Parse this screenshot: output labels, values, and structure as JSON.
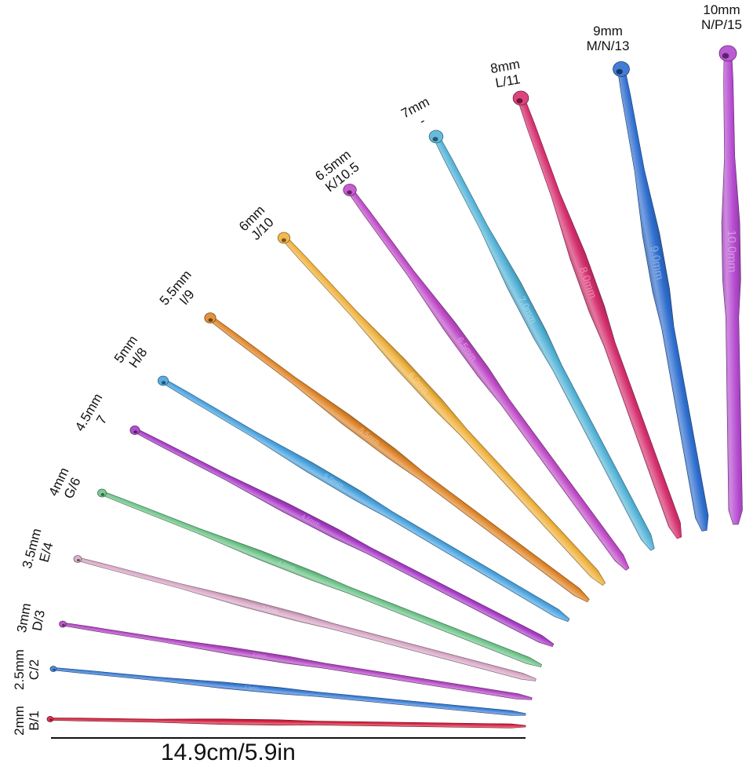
{
  "hooks": [
    {
      "size": "2mm",
      "us": "B/1",
      "color": "#d7203f",
      "engraving": ""
    },
    {
      "size": "2.5mm",
      "us": "C/2",
      "color": "#3d7fd8",
      "engraving": "2.5mm"
    },
    {
      "size": "3mm",
      "us": "D/3",
      "color": "#b448c4",
      "engraving": "3.0mm"
    },
    {
      "size": "3.5mm",
      "us": "E/4",
      "color": "#d9a8c6",
      "engraving": "3.5mm"
    },
    {
      "size": "4mm",
      "us": "G/6",
      "color": "#6fc58a",
      "engraving": "4.0mm"
    },
    {
      "size": "4.5mm",
      "us": "7",
      "color": "#a83cc6",
      "engraving": "4.5mm"
    },
    {
      "size": "5mm",
      "us": "H/8",
      "color": "#4aa3e0",
      "engraving": "5.0mm"
    },
    {
      "size": "5.5mm",
      "us": "I/9",
      "color": "#e0862a",
      "engraving": "5.5mm"
    },
    {
      "size": "6mm",
      "us": "J/10",
      "color": "#f0b23e",
      "engraving": "6.0mm"
    },
    {
      "size": "6.5mm",
      "us": "K/10.5",
      "color": "#c04cc8",
      "engraving": "6.5mm"
    },
    {
      "size": "7mm",
      "us": "-",
      "color": "#55b4d8",
      "engraving": "7.0mm"
    },
    {
      "size": "8mm",
      "us": "L/11",
      "color": "#d6306f",
      "engraving": "8.0mm"
    },
    {
      "size": "9mm",
      "us": "M/N/13",
      "color": "#2f6fd0",
      "engraving": "9.0mm"
    },
    {
      "size": "10mm",
      "us": "N/P/15",
      "color": "#b54ad0",
      "engraving": "10.0mm"
    }
  ],
  "measurement": {
    "label": "14.9cm/5.9in"
  },
  "colors": {
    "background": "#ffffff",
    "text": "#111111"
  }
}
